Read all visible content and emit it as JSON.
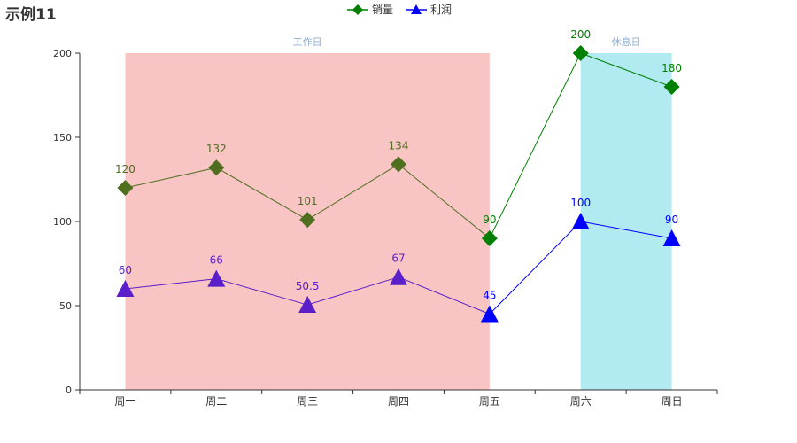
{
  "chart_data": {
    "type": "line",
    "title": "示例11",
    "categories": [
      "周一",
      "周二",
      "周三",
      "周四",
      "周五",
      "周六",
      "周日"
    ],
    "ylim": [
      0,
      200
    ],
    "yticks": [
      0,
      50,
      100,
      150,
      200
    ],
    "legend": {
      "placement": "top-center"
    },
    "grid": false,
    "series": [
      {
        "name": "销量",
        "values": [
          120,
          132,
          101,
          134,
          90,
          200,
          180
        ],
        "color": "#008000",
        "symbol": "diamond",
        "workday_color": "#4f6f1f"
      },
      {
        "name": "利润",
        "values": [
          60,
          66,
          50.5,
          67,
          45,
          100,
          90
        ],
        "color": "#0000ff",
        "symbol": "triangle",
        "workday_color": "#5a1fc8"
      }
    ],
    "mark_areas": [
      {
        "label": "工作日",
        "from": "周一",
        "to": "周五",
        "color": "#f8c4c4"
      },
      {
        "label": "休息日",
        "from": "周六",
        "to": "周日",
        "color": "#b1eaf0"
      }
    ]
  }
}
